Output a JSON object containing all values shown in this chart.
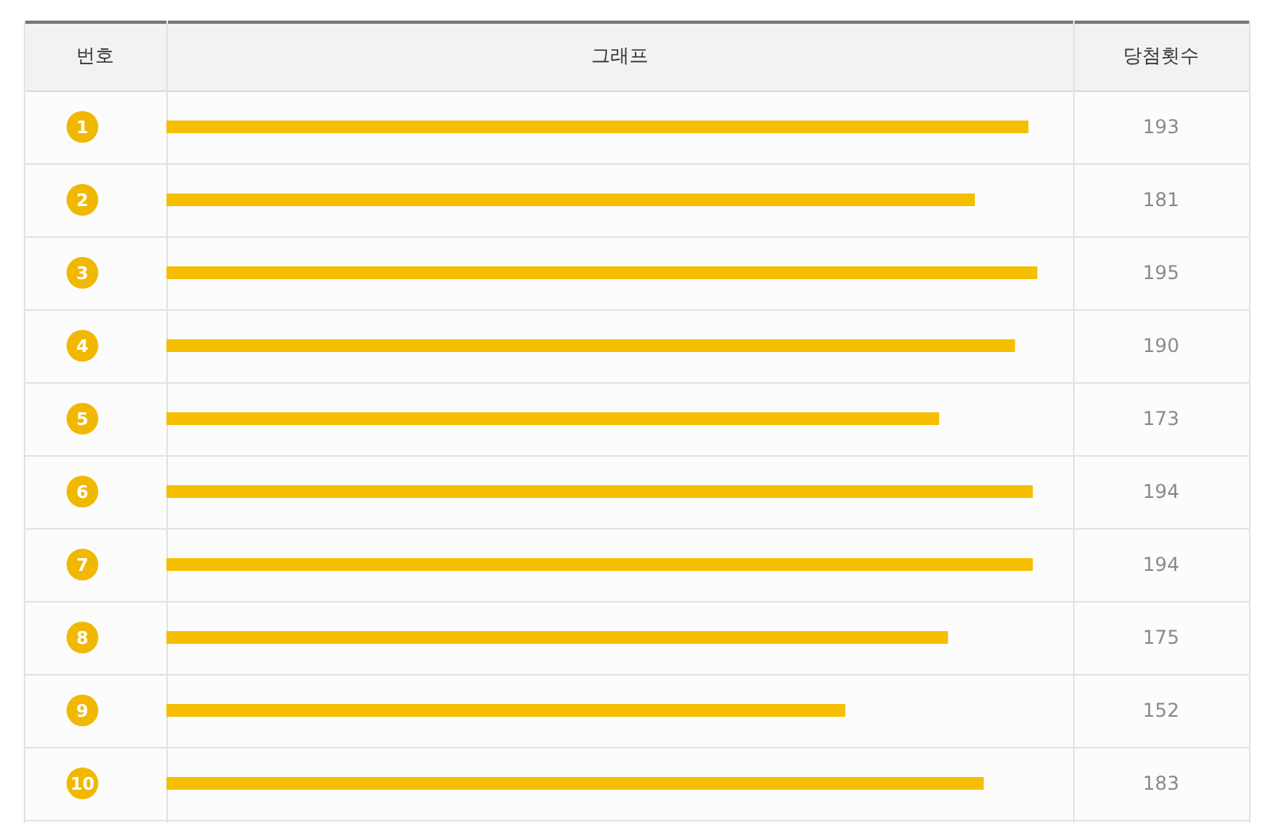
{
  "chart_data": {
    "type": "bar",
    "orientation": "horizontal",
    "title": "그래프",
    "ylabel": "번호",
    "annotations": [
      "당첨횟수"
    ],
    "categories": [
      "1",
      "2",
      "3",
      "4",
      "5",
      "6",
      "7",
      "8",
      "9",
      "10"
    ],
    "values": [
      193,
      181,
      195,
      190,
      173,
      194,
      194,
      175,
      152,
      183
    ],
    "color": "#f5be00",
    "xlim": [
      0,
      203
    ],
    "data_labels": true
  }
}
